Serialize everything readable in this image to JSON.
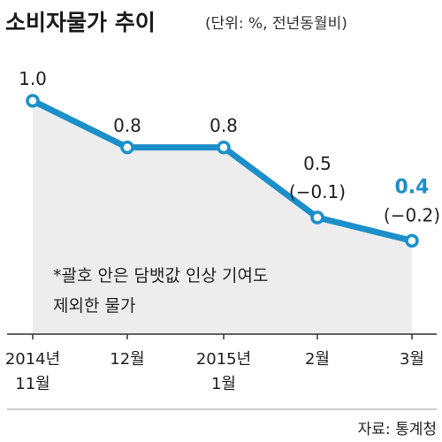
{
  "chart_data": {
    "type": "line",
    "title": "소비자물가 추이",
    "subtitle": "(단위: %, 전년동월비)",
    "categories": [
      [
        "2014년",
        "11월"
      ],
      [
        "12월"
      ],
      [
        "2015년",
        "1월"
      ],
      [
        "2월"
      ],
      [
        "3월"
      ]
    ],
    "values": [
      1.0,
      0.8,
      0.8,
      0.5,
      0.4
    ],
    "value_labels": [
      "1.0",
      "0.8",
      "0.8",
      "0.5",
      "0.4"
    ],
    "sub_labels": [
      "",
      "",
      "",
      "(−0.1)",
      "(−0.2)"
    ],
    "highlight_index": 4,
    "ylim": [
      0,
      1.0
    ],
    "note": [
      "*괄호 안은 담뱃값 인상 기여도",
      "제외한 물가"
    ],
    "source": "자료: 통계청",
    "colors": {
      "line": "#1b8fc9",
      "highlight_text": "#1b8fc9",
      "area_fill": "#ededed",
      "marker_fill": "#ffffff"
    }
  }
}
